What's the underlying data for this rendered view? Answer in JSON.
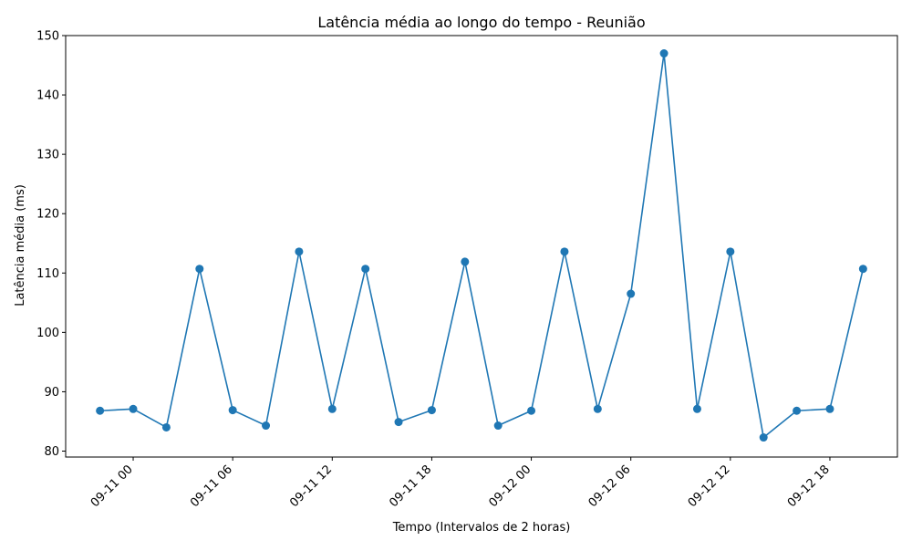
{
  "chart_data": {
    "type": "line",
    "title": "Latência média ao longo do tempo - Reunião",
    "xlabel": "Tempo (Intervalos de 2 horas)",
    "ylabel": "Latência média (ms)",
    "x_ticks": [
      "09-11 00",
      "09-11 06",
      "09-11 12",
      "09-11 18",
      "09-12 00",
      "09-12 06",
      "09-12 12",
      "09-12 18"
    ],
    "y_ticks": [
      "80",
      "90",
      "100",
      "110",
      "120",
      "130",
      "140",
      "150"
    ],
    "ylim": [
      79,
      150
    ],
    "x": [
      "09-10 22",
      "09-11 00",
      "09-11 02",
      "09-11 04",
      "09-11 06",
      "09-11 08",
      "09-11 10",
      "09-11 12",
      "09-11 14",
      "09-11 16",
      "09-11 18",
      "09-11 20",
      "09-11 22",
      "09-12 00",
      "09-12 02",
      "09-12 04",
      "09-12 06",
      "09-12 08",
      "09-12 10",
      "09-12 12",
      "09-12 14",
      "09-12 16",
      "09-12 18",
      "09-12 20"
    ],
    "series": [
      {
        "color": "#1f77b4",
        "values": [
          86.8,
          87.1,
          84.0,
          110.7,
          86.9,
          84.3,
          113.6,
          87.1,
          110.7,
          84.9,
          86.9,
          111.9,
          84.3,
          86.8,
          113.6,
          87.1,
          106.5,
          147.0,
          87.1,
          113.6,
          82.3,
          86.8,
          87.1,
          110.7
        ]
      }
    ],
    "grid": false,
    "legend": "none"
  }
}
